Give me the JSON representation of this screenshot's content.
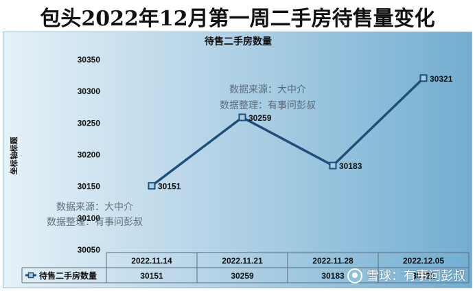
{
  "page_title": "包头2022年12月第一周二手房待售量变化",
  "chart_data": {
    "type": "line",
    "title": "待售二手房数量",
    "xlabel": "",
    "ylabel": "坐标轴标题",
    "categories": [
      "2022.11.14",
      "2022.11.21",
      "2022.11.28",
      "2022.12.05"
    ],
    "series": [
      {
        "name": "待售二手房数量",
        "values": [
          30151,
          30259,
          30183,
          30321
        ]
      }
    ],
    "ylim": [
      30050,
      30350
    ],
    "yticks": [
      30050,
      30100,
      30150,
      30200,
      30250,
      30300,
      30350
    ],
    "grid": false,
    "legend": "data-table",
    "data_labels": [
      "30151",
      "30259",
      "30183",
      "30321"
    ],
    "table_values": [
      "30151",
      "30259",
      "30183",
      "30321"
    ],
    "line_color": "#1f4e79"
  },
  "watermarks": {
    "source": "数据来源：大中介",
    "editor": "数据整理：有事问彭叔",
    "xueqiu": "雪球：有事问彭叔"
  }
}
